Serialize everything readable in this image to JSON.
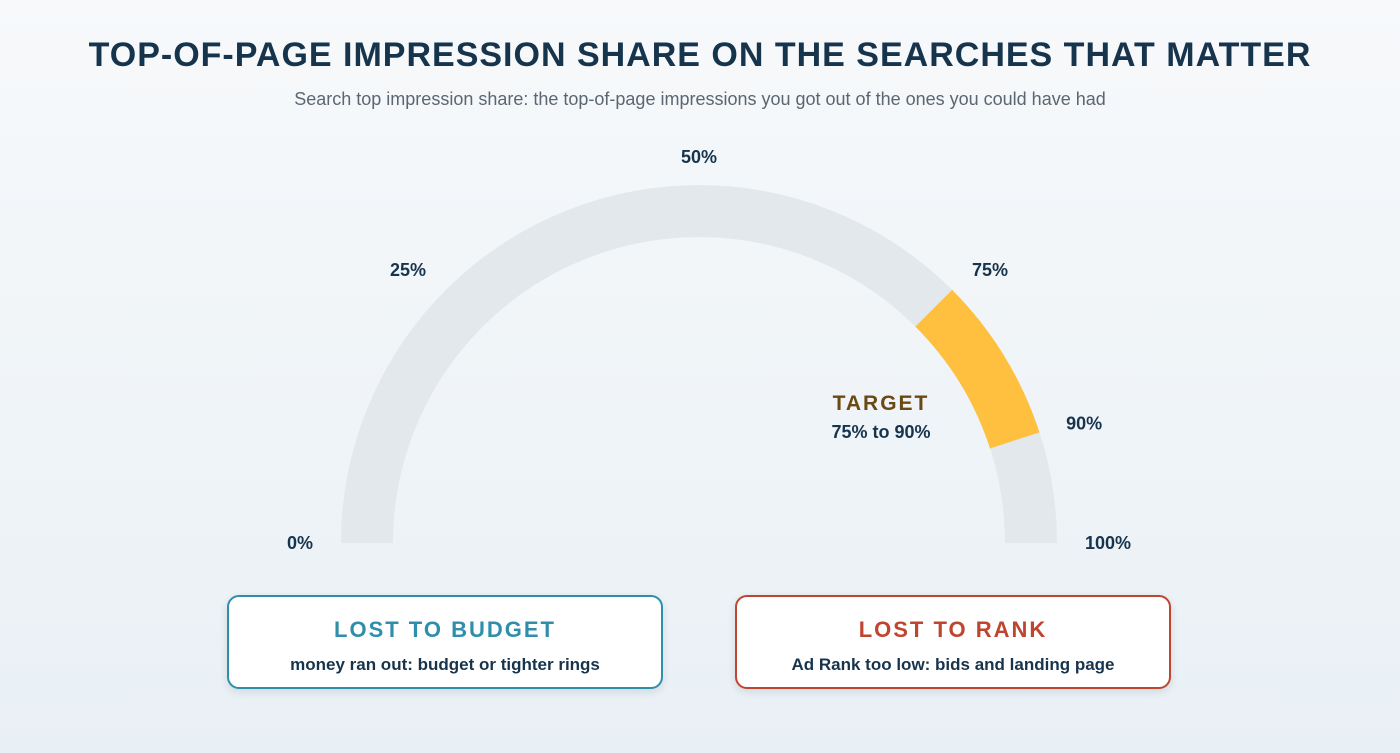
{
  "header": {
    "title": "TOP-OF-PAGE IMPRESSION SHARE ON THE SEARCHES THAT MATTER",
    "subtitle": "Search top impression share: the top-of-page impressions you got out of the ones you could have had"
  },
  "gauge": {
    "min": 0,
    "max": 100,
    "ticks": [
      {
        "value": 0,
        "label": "0%"
      },
      {
        "value": 25,
        "label": "25%"
      },
      {
        "value": 50,
        "label": "50%"
      },
      {
        "value": 75,
        "label": "75%"
      },
      {
        "value": 90,
        "label": "90%"
      },
      {
        "value": 100,
        "label": "100%"
      }
    ],
    "target": {
      "title": "TARGET",
      "range_label": "75% to 90%",
      "from": 75,
      "to": 90
    },
    "colors": {
      "track": "#e2e8ec",
      "target": "#ffc040"
    }
  },
  "cards": {
    "budget": {
      "title": "LOST TO BUDGET",
      "description": "money ran out: budget or tighter rings",
      "color": "#2f8fab"
    },
    "rank": {
      "title": "LOST TO RANK",
      "description": "Ad Rank too low: bids and landing page",
      "color": "#c0452e"
    }
  }
}
